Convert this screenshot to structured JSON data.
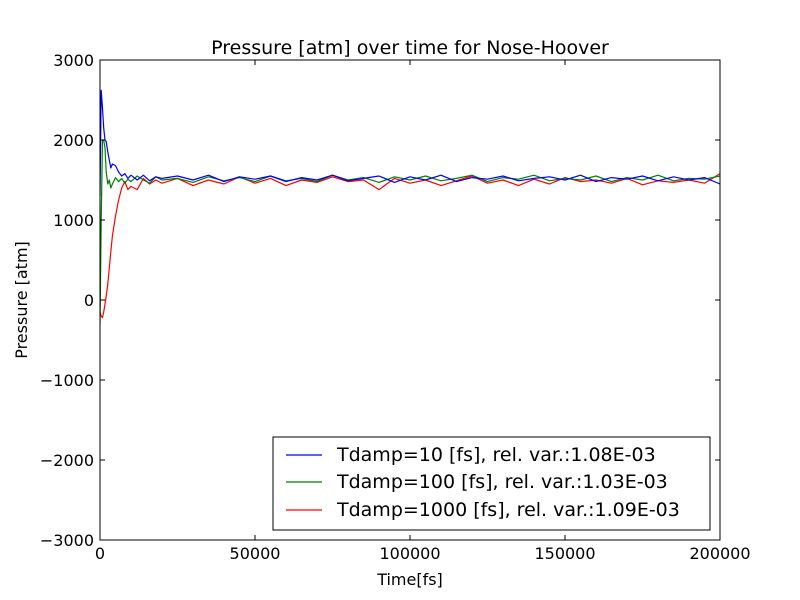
{
  "chart_data": {
    "type": "line",
    "title": "Pressure [atm] over time for Nose-Hoover",
    "xlabel": "Time[fs]",
    "ylabel": "Pressure [atm]",
    "xlim": [
      0,
      200000
    ],
    "ylim": [
      -3000,
      3000
    ],
    "xticks": [
      0,
      50000,
      100000,
      150000,
      200000
    ],
    "yticks": [
      -3000,
      -2000,
      -1000,
      0,
      1000,
      2000,
      3000
    ],
    "xtick_labels": [
      "0",
      "50000",
      "100000",
      "150000",
      "200000"
    ],
    "ytick_labels": [
      "−3000",
      "−2000",
      "−1000",
      "0",
      "1000",
      "2000",
      "3000"
    ],
    "grid": false,
    "legend_position": "lower-right",
    "series": [
      {
        "name": "Tdamp=10 [fs], rel. var.:1.08E-03",
        "color": "#0000ff",
        "x": [
          0,
          400,
          800,
          1200,
          1600,
          2000,
          2500,
          3000,
          3500,
          4000,
          5000,
          6000,
          7000,
          8000,
          9000,
          10000,
          12000,
          14000,
          16000,
          18000,
          20000,
          25000,
          30000,
          35000,
          40000,
          45000,
          50000,
          55000,
          60000,
          65000,
          70000,
          75000,
          80000,
          85000,
          90000,
          95000,
          100000,
          105000,
          110000,
          115000,
          120000,
          125000,
          130000,
          135000,
          140000,
          145000,
          150000,
          155000,
          160000,
          165000,
          170000,
          175000,
          180000,
          185000,
          190000,
          195000,
          200000
        ],
        "y": [
          1300,
          2620,
          2400,
          2150,
          2000,
          1980,
          1850,
          1750,
          1650,
          1700,
          1680,
          1600,
          1550,
          1580,
          1520,
          1560,
          1500,
          1560,
          1490,
          1540,
          1520,
          1550,
          1500,
          1560,
          1480,
          1540,
          1510,
          1550,
          1480,
          1530,
          1500,
          1560,
          1490,
          1520,
          1550,
          1470,
          1540,
          1500,
          1560,
          1480,
          1530,
          1510,
          1550,
          1490,
          1520,
          1540,
          1500,
          1560,
          1480,
          1530,
          1510,
          1550,
          1490,
          1540,
          1500,
          1530,
          1450
        ]
      },
      {
        "name": "Tdamp=100 [fs], rel. var.:1.03E-03",
        "color": "#008000",
        "x": [
          0,
          400,
          800,
          1200,
          1600,
          2000,
          2500,
          3000,
          3500,
          4000,
          5000,
          6000,
          7000,
          8000,
          9000,
          10000,
          12000,
          14000,
          16000,
          18000,
          20000,
          25000,
          30000,
          35000,
          40000,
          45000,
          50000,
          55000,
          60000,
          65000,
          70000,
          75000,
          80000,
          85000,
          90000,
          95000,
          100000,
          105000,
          110000,
          115000,
          120000,
          125000,
          130000,
          135000,
          140000,
          145000,
          150000,
          155000,
          160000,
          165000,
          170000,
          175000,
          180000,
          185000,
          190000,
          195000,
          200000
        ],
        "y": [
          -300,
          1000,
          2000,
          2000,
          1900,
          1600,
          1450,
          1500,
          1400,
          1450,
          1530,
          1480,
          1520,
          1460,
          1510,
          1480,
          1550,
          1500,
          1460,
          1540,
          1500,
          1520,
          1470,
          1540,
          1490,
          1530,
          1480,
          1550,
          1490,
          1520,
          1480,
          1560,
          1500,
          1530,
          1470,
          1540,
          1500,
          1550,
          1490,
          1520,
          1560,
          1480,
          1530,
          1510,
          1560,
          1490,
          1520,
          1500,
          1550,
          1480,
          1530,
          1500,
          1560,
          1490,
          1520,
          1510,
          1550
        ]
      },
      {
        "name": "Tdamp=1000 [fs], rel. var.:1.09E-03",
        "color": "#ff0000",
        "x": [
          0,
          400,
          800,
          1200,
          1600,
          2000,
          2500,
          3000,
          3500,
          4000,
          5000,
          6000,
          7000,
          8000,
          9000,
          10000,
          12000,
          14000,
          16000,
          18000,
          20000,
          25000,
          30000,
          35000,
          40000,
          45000,
          50000,
          55000,
          60000,
          65000,
          70000,
          75000,
          80000,
          85000,
          90000,
          95000,
          100000,
          105000,
          110000,
          115000,
          120000,
          125000,
          130000,
          135000,
          140000,
          145000,
          150000,
          155000,
          160000,
          165000,
          170000,
          175000,
          180000,
          185000,
          190000,
          195000,
          200000
        ],
        "y": [
          -150,
          -200,
          -220,
          -150,
          -50,
          50,
          200,
          400,
          600,
          800,
          1050,
          1250,
          1400,
          1480,
          1380,
          1420,
          1380,
          1520,
          1450,
          1500,
          1460,
          1520,
          1430,
          1500,
          1450,
          1540,
          1460,
          1520,
          1430,
          1500,
          1470,
          1540,
          1480,
          1500,
          1380,
          1520,
          1460,
          1500,
          1430,
          1490,
          1550,
          1460,
          1500,
          1430,
          1510,
          1450,
          1530,
          1480,
          1500,
          1460,
          1520,
          1440,
          1490,
          1470,
          1500,
          1460,
          1580
        ]
      }
    ]
  }
}
